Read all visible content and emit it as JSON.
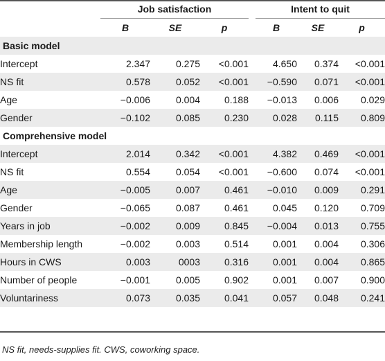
{
  "table": {
    "groups": [
      "Job satisfaction",
      "Intent to quit"
    ],
    "subheaders": [
      "B",
      "SE",
      "p",
      "B",
      "SE",
      "p"
    ],
    "sections": [
      {
        "title": "Basic model",
        "rows": [
          {
            "label": "Intercept",
            "values": [
              "2.347",
              "0.275",
              "<0.001",
              "4.650",
              "0.374",
              "<0.001"
            ]
          },
          {
            "label": "NS fit",
            "values": [
              "0.578",
              "0.052",
              "<0.001",
              "−0.590",
              "0.071",
              "<0.001"
            ]
          },
          {
            "label": "Age",
            "values": [
              "−0.006",
              "0.004",
              "0.188",
              "−0.013",
              "0.006",
              "0.029"
            ]
          },
          {
            "label": "Gender",
            "values": [
              "−0.102",
              "0.085",
              "0.230",
              "0.028",
              "0.115",
              "0.809"
            ]
          }
        ]
      },
      {
        "title": "Comprehensive model",
        "rows": [
          {
            "label": "Intercept",
            "values": [
              "2.014",
              "0.342",
              "<0.001",
              "4.382",
              "0.469",
              "<0.001"
            ]
          },
          {
            "label": "NS fit",
            "values": [
              "0.554",
              "0.054",
              "<0.001",
              "−0.600",
              "0.074",
              "<0.001"
            ]
          },
          {
            "label": "Age",
            "values": [
              "−0.005",
              "0.007",
              "0.461",
              "−0.010",
              "0.009",
              "0.291"
            ]
          },
          {
            "label": "Gender",
            "values": [
              "−0.065",
              "0.087",
              "0.461",
              "0.045",
              "0.120",
              "0.709"
            ]
          },
          {
            "label": "Years in job",
            "values": [
              "−0.002",
              "0.009",
              "0.845",
              "−0.004",
              "0.013",
              "0.755"
            ]
          },
          {
            "label": "Membership length",
            "values": [
              "−0.002",
              "0.003",
              "0.514",
              "0.001",
              "0.004",
              "0.306"
            ]
          },
          {
            "label": "Hours in CWS",
            "values": [
              "0.003",
              "0003",
              "0.316",
              "0.001",
              "0.004",
              "0.865"
            ]
          },
          {
            "label": "Number of people",
            "values": [
              "−0.001",
              "0.005",
              "0.902",
              "0.001",
              "0.007",
              "0.900"
            ]
          },
          {
            "label": "Voluntariness",
            "values": [
              "0.073",
              "0.035",
              "0.041",
              "0.057",
              "0.048",
              "0.241"
            ]
          }
        ]
      }
    ],
    "note": "NS fit, needs-supplies fit. CWS, coworking space."
  }
}
